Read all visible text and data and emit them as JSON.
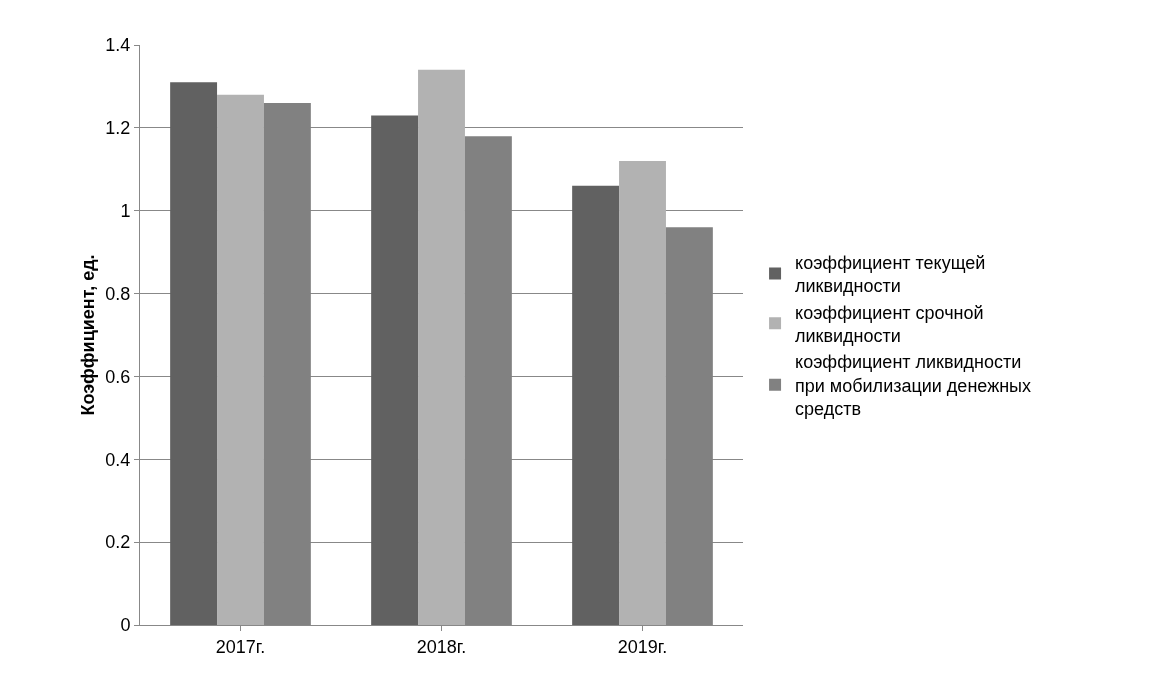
{
  "chart_data": {
    "type": "bar",
    "ylabel": "Коэффициент, ед.",
    "categories": [
      "2017г.",
      "2018г.",
      "2019г."
    ],
    "series": [
      {
        "name": "коэффициент текущей ликвидности",
        "color": "#616161",
        "values": [
          1.31,
          1.23,
          1.06
        ]
      },
      {
        "name": "коэффициент срочной ликвидности",
        "color": "#b2b2b2",
        "values": [
          1.28,
          1.34,
          1.12
        ]
      },
      {
        "name": "коэффициент ликвидности при мобилизации денежных средств",
        "color": "#818181",
        "values": [
          1.26,
          1.18,
          0.96
        ]
      }
    ],
    "ylim": [
      0,
      1.4
    ],
    "yticks": [
      0,
      0.2,
      0.4,
      0.6,
      0.8,
      1,
      1.2,
      1.4
    ],
    "grid": "y",
    "legend": "right"
  }
}
